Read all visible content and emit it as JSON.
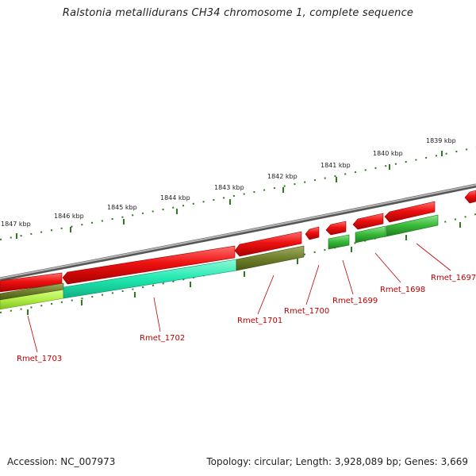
{
  "title": "Ralstonia metallidurans CH34 chromosome 1, complete sequence",
  "footer": {
    "accession": "Accession: NC_007973",
    "summary": "Topology: circular; Length: 3,928,089 bp; Genes: 3,669"
  },
  "ticks": [
    "1847 kbp",
    "1846 kbp",
    "1845 kbp",
    "1844 kbp",
    "1843 kbp",
    "1842 kbp",
    "1841 kbp",
    "1840 kbp",
    "1839 kbp"
  ],
  "genes": [
    {
      "name": "Rmet_1703"
    },
    {
      "name": "Rmet_1702"
    },
    {
      "name": "Rmet_1701"
    },
    {
      "name": "Rmet_1700"
    },
    {
      "name": "Rmet_1699"
    },
    {
      "name": "Rmet_1698"
    },
    {
      "name": "Rmet_1697"
    }
  ],
  "colors": {
    "backbone": "#8a8a8a",
    "forward_cds": "#ee1111",
    "tick_marks": "#2d7a1f",
    "label": "#c00000",
    "olive": "#6e7f2a",
    "teal": "#1ee8b0",
    "green": "#3ec23e",
    "lime": "#b5f04a"
  }
}
